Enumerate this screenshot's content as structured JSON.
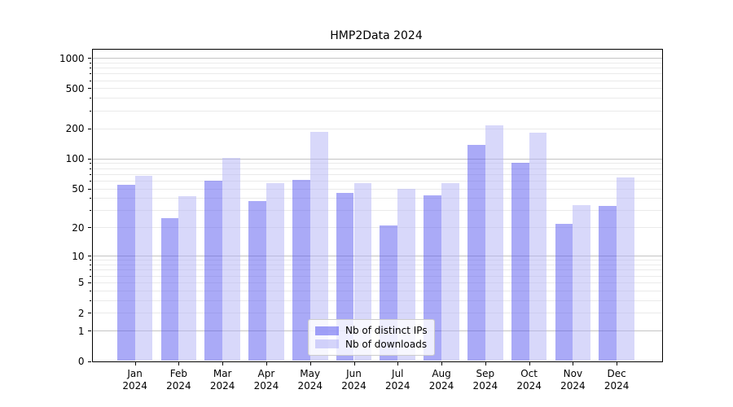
{
  "chart_data": {
    "type": "bar",
    "title": "HMP2Data 2024",
    "categories": [
      "Jan 2024",
      "Feb 2024",
      "Mar 2024",
      "Apr 2024",
      "May 2024",
      "Jun 2024",
      "Jul 2024",
      "Aug 2024",
      "Sep 2024",
      "Oct 2024",
      "Nov 2024",
      "Dec 2024"
    ],
    "series": [
      {
        "name": "Nb of distinct IPs",
        "color": "#5555f0",
        "values": [
          55,
          25,
          60,
          37,
          61,
          45,
          21,
          43,
          138,
          91,
          22,
          33
        ]
      },
      {
        "name": "Nb of downloads",
        "color": "#b1b1f5",
        "values": [
          67,
          42,
          102,
          57,
          185,
          57,
          50,
          57,
          214,
          180,
          34,
          65
        ]
      }
    ],
    "bar_opacity": 0.5,
    "yscale": "log1p",
    "yticks": [
      0,
      1,
      2,
      5,
      10,
      20,
      50,
      100,
      200,
      500,
      1000
    ],
    "ylim": [
      0,
      1245
    ],
    "xlabel": "",
    "ylabel": "",
    "legend_position": "lower center",
    "grid": "horizontal",
    "colors": {
      "major_gridline": "#c4c4c4",
      "minor_gridline": "#eaeaea",
      "spine": "#000000",
      "background": "#ffffff"
    }
  }
}
